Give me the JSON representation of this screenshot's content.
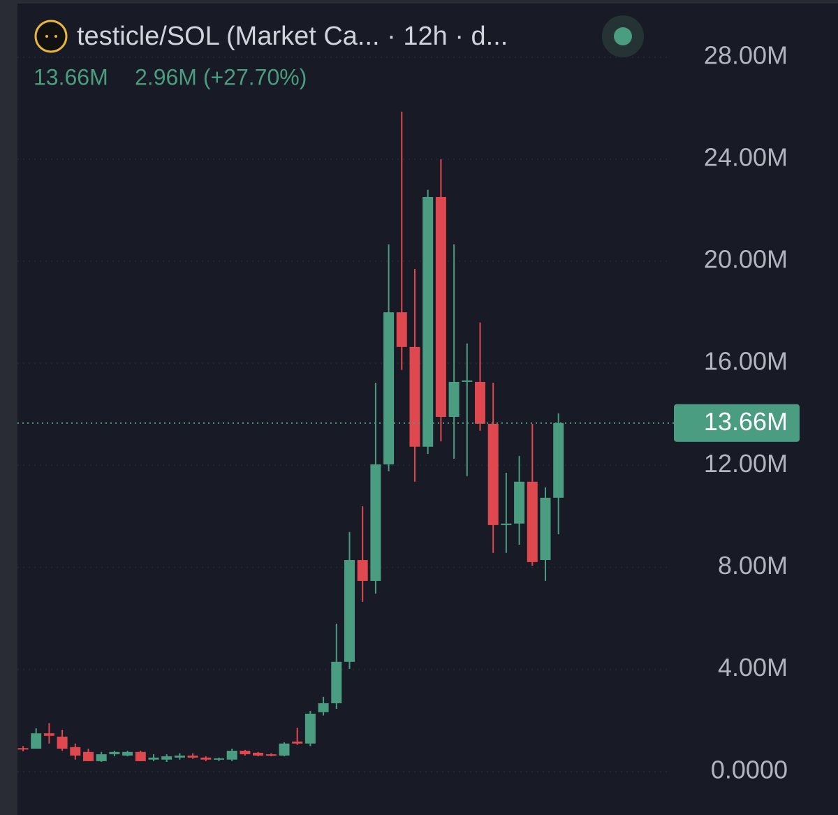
{
  "chart_data": {
    "type": "candlestick",
    "title": "testicle/SOL (Market Ca... · 12h · d...",
    "header_values": [
      "13.66M",
      "2.96M (+27.70%)"
    ],
    "open": [
      0.92,
      0.9,
      1.5,
      1.37,
      0.96,
      0.77,
      0.41,
      0.68,
      0.63,
      0.77,
      0.47,
      0.47,
      0.55,
      0.63,
      0.55,
      0.47,
      0.47,
      0.82,
      0.74,
      0.68,
      0.63,
      1.18,
      1.1,
      2.33,
      2.68,
      4.3,
      8.29,
      7.47,
      12.04,
      18.0,
      16.64,
      12.73,
      22.52,
      13.9,
      15.27,
      15.27,
      13.63,
      9.66,
      9.72,
      11.36,
      8.29,
      10.73
    ],
    "high": [
      1.0,
      1.7,
      1.9,
      1.64,
      1.1,
      0.9,
      0.77,
      0.82,
      0.82,
      0.82,
      0.68,
      0.68,
      0.72,
      0.72,
      0.6,
      0.55,
      0.9,
      0.85,
      0.77,
      0.72,
      1.15,
      1.72,
      2.38,
      2.93,
      5.8,
      9.39,
      10.4,
      15.24,
      20.66,
      25.86,
      19.7,
      22.8,
      24.0,
      20.66,
      16.78,
      17.6,
      15.24,
      11.71,
      12.37,
      13.63,
      11.14,
      14.04
    ],
    "low": [
      0.8,
      0.9,
      1.1,
      0.82,
      0.47,
      0.41,
      0.38,
      0.6,
      0.6,
      0.41,
      0.41,
      0.38,
      0.47,
      0.5,
      0.41,
      0.41,
      0.41,
      0.63,
      0.6,
      0.6,
      0.6,
      1.05,
      1.0,
      2.2,
      2.46,
      4.02,
      6.65,
      6.98,
      11.77,
      15.74,
      11.36,
      12.45,
      12.94,
      12.26,
      11.58,
      13.36,
      8.57,
      8.57,
      8.89,
      8.07,
      7.47,
      9.3
    ],
    "close": [
      0.9,
      1.5,
      1.4,
      0.9,
      0.63,
      0.41,
      0.68,
      0.77,
      0.77,
      0.41,
      0.55,
      0.6,
      0.63,
      0.55,
      0.47,
      0.52,
      0.82,
      0.68,
      0.63,
      0.66,
      1.1,
      1.1,
      2.27,
      2.68,
      4.3,
      8.29,
      7.47,
      12.04,
      18.0,
      16.64,
      12.73,
      22.52,
      13.9,
      15.27,
      15.33,
      13.63,
      9.66,
      9.72,
      11.36,
      8.21,
      10.73,
      13.66
    ],
    "up_color": "#4a9d80",
    "down_color": "#e0484f",
    "ylim": [
      -1.7,
      30.1
    ],
    "yticks": [
      {
        "value": 0,
        "label": "0.0000"
      },
      {
        "value": 4,
        "label": "4.00M"
      },
      {
        "value": 8,
        "label": "8.00M"
      },
      {
        "value": 12,
        "label": "12.00M"
      },
      {
        "value": 16,
        "label": "16.00M"
      },
      {
        "value": 20,
        "label": "20.00M"
      },
      {
        "value": 24,
        "label": "24.00M"
      },
      {
        "value": 28,
        "label": "28.00M"
      }
    ],
    "last_price": {
      "value": 13.66,
      "label": "13.66M"
    },
    "grid": true
  }
}
